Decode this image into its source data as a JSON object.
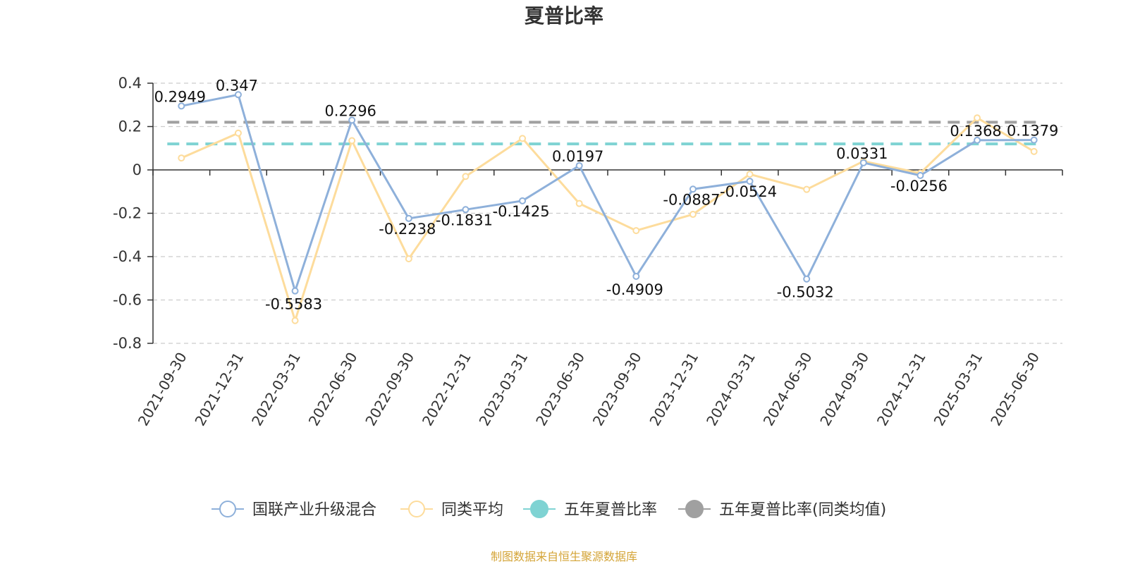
{
  "chart_data": {
    "type": "line",
    "title": "夏普比率",
    "categories": [
      "2021-09-30",
      "2021-12-31",
      "2022-03-31",
      "2022-06-30",
      "2022-09-30",
      "2022-12-31",
      "2023-03-31",
      "2023-06-30",
      "2023-09-30",
      "2023-12-31",
      "2024-03-31",
      "2024-06-30",
      "2024-09-30",
      "2024-12-31",
      "2025-03-31",
      "2025-06-30"
    ],
    "ylim": [
      -0.8,
      0.4
    ],
    "yticks": [
      0.4,
      0.2,
      0,
      -0.2,
      -0.4,
      -0.6,
      -0.8
    ],
    "ytick_labels": [
      "0.4",
      "0.2",
      "0",
      "-0.2",
      "-0.4",
      "-0.6",
      "-0.8"
    ],
    "grid": true,
    "legend_position": "bottom",
    "series": [
      {
        "name": "国联产业升级混合",
        "color": "#8eb0da",
        "values": [
          0.2949,
          0.347,
          -0.5583,
          0.2296,
          -0.2238,
          -0.1831,
          -0.1425,
          0.0197,
          -0.4909,
          -0.0887,
          -0.0524,
          -0.5032,
          0.0331,
          -0.0256,
          0.1368,
          0.1379
        ],
        "labels": [
          "0.2949",
          "0.347",
          "-0.5583",
          "0.2296",
          "-0.2238",
          "-0.1831",
          "-0.1425",
          "0.0197",
          "-0.4909",
          "-0.0887",
          "-0.0524",
          "-0.5032",
          "0.0331",
          "-0.0256",
          "0.1368",
          "0.1379"
        ]
      },
      {
        "name": "同类平均",
        "color": "#fddc9c",
        "values": [
          0.055,
          0.17,
          -0.695,
          0.135,
          -0.41,
          -0.03,
          0.145,
          -0.155,
          -0.28,
          -0.205,
          -0.02,
          -0.09,
          0.04,
          -0.015,
          0.24,
          0.085
        ]
      },
      {
        "name": "五年夏普比率",
        "color": "#7fd3d3",
        "reference_value": 0.12
      },
      {
        "name": "五年夏普比率(同类均值)",
        "color": "#a0a0a0",
        "reference_value": 0.22
      }
    ]
  },
  "source": {
    "text": "制图数据来自恒生聚源数据库",
    "color": "#d4a437"
  }
}
